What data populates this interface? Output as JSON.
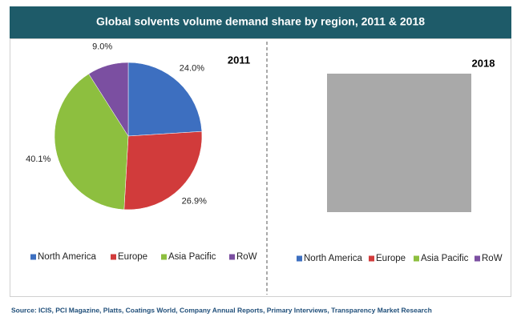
{
  "title": "Global solvents volume demand share by region, 2011 & 2018",
  "source": "Source: ICIS, PCI Magazine, Platts, Coatings World, Company Annual Reports, Primary Interviews, Transparency Market Research",
  "chart_data": [
    {
      "type": "pie",
      "title": "2011",
      "categories": [
        "North America",
        "Europe",
        "Asia Pacific",
        "RoW"
      ],
      "values": [
        24.0,
        26.9,
        40.1,
        9.0
      ],
      "value_labels": [
        "24.0%",
        "26.9%",
        "40.1%",
        "9.0%"
      ],
      "colors": [
        "#3d6fc0",
        "#d13b3b",
        "#8dbf3f",
        "#7b4fa1"
      ]
    },
    {
      "type": "pie",
      "title": "2018",
      "categories": [
        "North America",
        "Europe",
        "Asia Pacific",
        "RoW"
      ],
      "colors": [
        "#3d6fc0",
        "#d13b3b",
        "#8dbf3f",
        "#7b4fa1"
      ]
    }
  ]
}
